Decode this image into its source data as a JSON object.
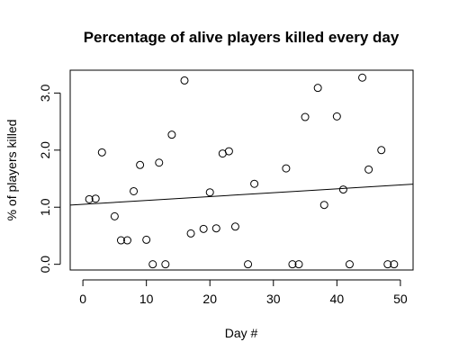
{
  "chart_data": {
    "type": "scatter",
    "title": "Percentage of alive players killed every day",
    "xlabel": "Day #",
    "ylabel": "% of players killed",
    "xlim": [
      -2,
      52
    ],
    "ylim": [
      -0.1,
      3.4
    ],
    "x_ticks": [
      0,
      10,
      20,
      30,
      40,
      50
    ],
    "x_tick_labels": [
      "0",
      "10",
      "20",
      "30",
      "40",
      "50"
    ],
    "y_ticks": [
      0,
      1,
      2,
      3
    ],
    "y_tick_labels": [
      "0.0",
      "1.0",
      "2.0",
      "3.0"
    ],
    "grid": false,
    "legend": false,
    "series": [
      {
        "points": [
          [
            1,
            1.14
          ],
          [
            2,
            1.15
          ],
          [
            3,
            1.96
          ],
          [
            5,
            0.84
          ],
          [
            6,
            0.42
          ],
          [
            7,
            0.42
          ],
          [
            8,
            1.28
          ],
          [
            9,
            1.74
          ],
          [
            10,
            0.43
          ],
          [
            11,
            0.0
          ],
          [
            12,
            1.78
          ],
          [
            13,
            0.0
          ],
          [
            14,
            2.27
          ],
          [
            16,
            3.22
          ],
          [
            17,
            0.54
          ],
          [
            19,
            0.62
          ],
          [
            20,
            1.26
          ],
          [
            21,
            0.63
          ],
          [
            22,
            1.94
          ],
          [
            23,
            1.98
          ],
          [
            24,
            0.66
          ],
          [
            26,
            0.0
          ],
          [
            27,
            1.41
          ],
          [
            32,
            1.68
          ],
          [
            33,
            0.0
          ],
          [
            34,
            0.0
          ],
          [
            35,
            2.58
          ],
          [
            37,
            3.09
          ],
          [
            38,
            1.04
          ],
          [
            40,
            2.59
          ],
          [
            41,
            1.31
          ],
          [
            42,
            0.0
          ],
          [
            44,
            3.27
          ],
          [
            45,
            1.66
          ],
          [
            47,
            2.0
          ],
          [
            48,
            0.0
          ],
          [
            49,
            0.0
          ]
        ]
      }
    ],
    "trend_line": {
      "intercept": 1.05,
      "slope": 0.0068
    }
  }
}
